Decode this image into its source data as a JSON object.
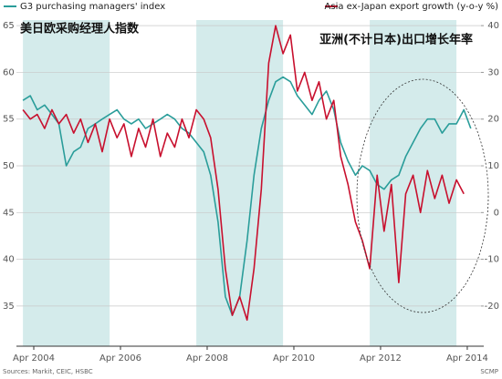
{
  "chart_data": {
    "type": "line",
    "annotations": [
      "美日欧采购经理人指数",
      "亚洲(不计日本)出口增长年率"
    ],
    "source": "Sources: Markit, CEIC, HSBC",
    "credit": "SCMP",
    "x": [
      2004,
      2004.17,
      2004.33,
      2004.5,
      2004.67,
      2004.83,
      2005,
      2005.17,
      2005.33,
      2005.5,
      2005.67,
      2005.83,
      2006,
      2006.17,
      2006.33,
      2006.5,
      2006.67,
      2006.83,
      2007,
      2007.17,
      2007.33,
      2007.5,
      2007.67,
      2007.83,
      2008,
      2008.17,
      2008.33,
      2008.5,
      2008.67,
      2008.83,
      2009,
      2009.17,
      2009.33,
      2009.5,
      2009.67,
      2009.83,
      2010,
      2010.17,
      2010.33,
      2010.5,
      2010.67,
      2010.83,
      2011,
      2011.17,
      2011.33,
      2011.5,
      2011.67,
      2011.83,
      2012,
      2012.17,
      2012.33,
      2012.5,
      2012.67,
      2012.83,
      2013,
      2013.17,
      2013.33,
      2013.5,
      2013.67,
      2013.83,
      2014,
      2014.17,
      2014.33,
      2014.5
    ],
    "series": [
      {
        "name": "G3 purchasing managers' index",
        "color": "#2a9d9a",
        "axis": "y",
        "values": [
          57,
          57.5,
          56,
          56.5,
          55.5,
          54.5,
          50,
          51.5,
          52,
          54,
          54.5,
          55,
          55.5,
          56,
          55,
          54.5,
          55,
          54,
          54.5,
          55,
          55.5,
          55,
          54,
          53.5,
          52.5,
          51.5,
          49,
          44,
          36,
          34,
          36,
          42,
          49,
          54,
          57,
          59,
          59.5,
          59,
          57.5,
          56.5,
          55.5,
          57,
          58,
          56,
          52.5,
          50.5,
          49,
          50,
          49.5,
          48,
          47.5,
          48.5,
          49,
          51,
          52.5,
          54,
          55,
          55,
          53.5,
          54.5,
          54.5,
          56,
          54,
          null
        ]
      },
      {
        "name": "Asia ex-Japan export growth (y-o-y %)",
        "color": "#c8102e",
        "axis": "y2",
        "values": [
          22,
          20,
          21,
          18,
          22,
          19,
          21,
          17,
          20,
          15,
          19,
          13,
          20,
          16,
          19,
          12,
          18,
          14,
          20,
          12,
          17,
          14,
          20,
          16,
          22,
          20,
          16,
          5,
          -12,
          -22,
          -18,
          -23,
          -12,
          5,
          32,
          40,
          34,
          38,
          26,
          30,
          24,
          28,
          20,
          24,
          12,
          6,
          -2,
          -6,
          -12,
          8,
          -4,
          6,
          -15,
          4,
          8,
          0,
          9,
          3,
          8,
          2,
          7,
          4,
          null,
          null
        ]
      }
    ],
    "bands": [
      [
        2004,
        2006
      ],
      [
        2008,
        2010
      ],
      [
        2012,
        2014
      ]
    ],
    "band_color": "#d4ebeb",
    "xlim": [
      2003.85,
      2014.63
    ],
    "xticks": [
      {
        "value": 2004.25,
        "label": "Apr 2004"
      },
      {
        "value": 2006.25,
        "label": "Apr 2006"
      },
      {
        "value": 2008.25,
        "label": "Apr 2008"
      },
      {
        "value": 2010.25,
        "label": "Apr 2010"
      },
      {
        "value": 2012.25,
        "label": "Apr 2012"
      },
      {
        "value": 2014.25,
        "label": "Apr 2014"
      }
    ],
    "ylim": [
      30.7,
      65.6
    ],
    "yticks": [
      35,
      40,
      45,
      50,
      55,
      60,
      65
    ],
    "y2lim": [
      -28.6,
      41.2
    ],
    "y2ticks": [
      -20,
      -10,
      0,
      10,
      20,
      30,
      40
    ],
    "grid": true
  }
}
